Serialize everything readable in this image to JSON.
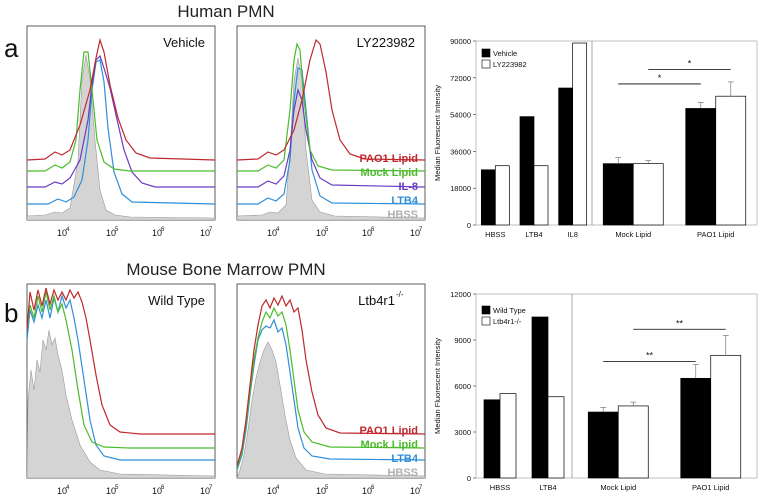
{
  "figure": {
    "rows": [
      {
        "letter": "a",
        "title": "Human PMN",
        "histograms": [
          {
            "label": "Vehicle",
            "x_ticks": [
              "10",
              "10",
              "10",
              "10"
            ],
            "x_exps": [
              "4",
              "5",
              "6",
              "7"
            ]
          },
          {
            "label": "LY223982",
            "x_ticks": [
              "10",
              "10",
              "10",
              "10"
            ],
            "x_exps": [
              "4",
              "5",
              "6",
              "7"
            ]
          }
        ],
        "legend": [
          {
            "name": "PAO1 Lipid",
            "color": "#c0282d"
          },
          {
            "name": "Mock Lipid",
            "color": "#4bbb2c"
          },
          {
            "name": "IL-8",
            "color": "#6a3cc4"
          },
          {
            "name": "LTB4",
            "color": "#2f8fd8"
          },
          {
            "name": "HBSS",
            "color": "#b0b0b0"
          }
        ]
      },
      {
        "letter": "b",
        "title": "Mouse Bone Marrow PMN",
        "histograms": [
          {
            "label": "Wild Type",
            "x_ticks": [
              "10",
              "10",
              "10",
              "10"
            ],
            "x_exps": [
              "4",
              "5",
              "6",
              "7"
            ]
          },
          {
            "label": "Ltb4r1",
            "label_sup": "-/-",
            "x_ticks": [
              "10",
              "10",
              "10",
              "10"
            ],
            "x_exps": [
              "4",
              "5",
              "6",
              "7"
            ]
          }
        ],
        "legend": [
          {
            "name": "PAO1 Lipid",
            "color": "#c0282d"
          },
          {
            "name": "Mock Lipid",
            "color": "#4bbb2c"
          },
          {
            "name": "LTB4",
            "color": "#2f8fd8"
          },
          {
            "name": "HBSS",
            "color": "#b0b0b0"
          }
        ]
      }
    ]
  },
  "chart_data": [
    {
      "type": "bar",
      "panel": "a",
      "title": "Human PMN",
      "ylabel": "Median Fluorescent Intensity",
      "ylim": [
        0,
        90000
      ],
      "yticks": [
        "0",
        "18000",
        "36000",
        "54000",
        "72000",
        "90000"
      ],
      "legend": [
        "Vehicle",
        "LY223982"
      ],
      "left_group": {
        "categories": [
          "HBSS",
          "LTB4",
          "IL8"
        ],
        "series": [
          {
            "name": "Vehicle",
            "values": [
              27000,
              53000,
              67000
            ]
          },
          {
            "name": "LY223982",
            "values": [
              29000,
              29000,
              89000
            ]
          }
        ]
      },
      "right_group": {
        "categories": [
          "Mock Lipid",
          "PAO1 Lipid"
        ],
        "series": [
          {
            "name": "Vehicle",
            "values": [
              30000,
              57000
            ],
            "errors": [
              3000,
              3000
            ]
          },
          {
            "name": "LY223982",
            "values": [
              30000,
              63000
            ],
            "errors": [
              1500,
              7000
            ]
          }
        ],
        "significance": [
          {
            "from": "Mock Lipid",
            "to": "PAO1 Lipid",
            "series": "Vehicle",
            "label": "*",
            "y": 69000
          },
          {
            "from": "Mock Lipid",
            "to": "PAO1 Lipid",
            "series": "LY223982",
            "label": "*",
            "y": 76000
          }
        ]
      }
    },
    {
      "type": "bar",
      "panel": "b",
      "title": "Mouse Bone Marrow PMN",
      "ylabel": "Median Fluorescent Intensity",
      "ylim": [
        0,
        12000
      ],
      "yticks": [
        "0",
        "3000",
        "6000",
        "9000",
        "12000"
      ],
      "legend": [
        "Wild Type",
        "Ltb4r1-/-"
      ],
      "left_group": {
        "categories": [
          "HBSS",
          "LTB4"
        ],
        "series": [
          {
            "name": "Wild Type",
            "values": [
              5100,
              10500
            ]
          },
          {
            "name": "Ltb4r1-/-",
            "values": [
              5500,
              5300
            ]
          }
        ]
      },
      "right_group": {
        "categories": [
          "Mock Lipid",
          "PAO1 Lipid"
        ],
        "series": [
          {
            "name": "Wild Type",
            "values": [
              4300,
              6500
            ],
            "errors": [
              300,
              900
            ]
          },
          {
            "name": "Ltb4r1-/-",
            "values": [
              4700,
              8000
            ],
            "errors": [
              250,
              1300
            ]
          }
        ],
        "significance": [
          {
            "from": "Mock Lipid",
            "to": "PAO1 Lipid",
            "series": "Wild Type",
            "label": "**",
            "y": 7600
          },
          {
            "from": "Mock Lipid",
            "to": "PAO1 Lipid",
            "series": "Ltb4r1-/-",
            "label": "**",
            "y": 9700
          }
        ]
      }
    }
  ]
}
